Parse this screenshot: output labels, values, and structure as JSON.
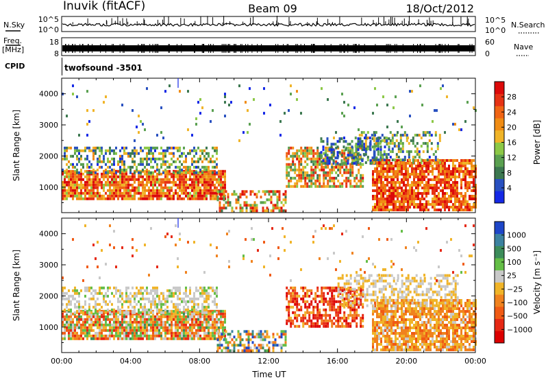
{
  "header": {
    "site": "Inuvik (fitACF)",
    "beam": "Beam 09",
    "date": "18/Oct/2012"
  },
  "noise_panel": {
    "left_label": "N.Sky",
    "right_label": "N.Search",
    "left_ticks": [
      "10^5",
      "10^0"
    ],
    "right_ticks": [
      "10^5",
      "10^0"
    ]
  },
  "freq_panel": {
    "left_label_top": "Freq.",
    "left_label_bottom": "[MHz]",
    "right_label": "Nave",
    "left_ticks": [
      "18",
      "8"
    ],
    "right_ticks": [
      "60",
      "0"
    ]
  },
  "cpid": {
    "label": "CPID",
    "value": "twofsound -3501"
  },
  "chart_data": [
    {
      "type": "heatmap",
      "title": "Power",
      "xlabel": "",
      "ylabel": "Slant Range [km]",
      "x_ticks": [
        "00:00",
        "04:00",
        "08:00",
        "12:00",
        "16:00",
        "20:00",
        "00:00"
      ],
      "xlim_hours": [
        0,
        24
      ],
      "y_ticks": [
        1000,
        2000,
        3000,
        4000
      ],
      "ylim": [
        180,
        4500
      ],
      "colorbar": {
        "label": "Power [dB]",
        "ticks": [
          "4",
          "8",
          "12",
          "16",
          "20",
          "24",
          "28"
        ],
        "colors": [
          "#1428e6",
          "#2850c0",
          "#3c7850",
          "#5aa050",
          "#8cc846",
          "#f0b428",
          "#f08c14",
          "#f06414",
          "#e63214",
          "#dc0a0a"
        ]
      },
      "bands": [
        {
          "t0": 0.0,
          "t1": 9.5,
          "r0": 650,
          "r1": 1550,
          "vmin": 16,
          "vmax": 30,
          "density": 0.85
        },
        {
          "t0": 0.0,
          "t1": 9.0,
          "r0": 1500,
          "r1": 2300,
          "vmin": 6,
          "vmax": 22,
          "density": 0.5
        },
        {
          "t0": 9.0,
          "t1": 13.0,
          "r0": 250,
          "r1": 900,
          "vmin": 10,
          "vmax": 30,
          "density": 0.55
        },
        {
          "t0": 13.0,
          "t1": 17.5,
          "r0": 1000,
          "r1": 2300,
          "vmin": 10,
          "vmax": 28,
          "density": 0.65
        },
        {
          "t0": 15.0,
          "t1": 19.0,
          "r0": 1800,
          "r1": 2600,
          "vmin": 4,
          "vmax": 14,
          "density": 0.45
        },
        {
          "t0": 18.0,
          "t1": 24.0,
          "r0": 300,
          "r1": 1900,
          "vmin": 18,
          "vmax": 30,
          "density": 0.8
        },
        {
          "t0": 17.0,
          "t1": 22.0,
          "r0": 1800,
          "r1": 2800,
          "vmin": 6,
          "vmax": 20,
          "density": 0.4
        },
        {
          "t0": 0.0,
          "t1": 24.0,
          "r0": 2500,
          "r1": 4300,
          "vmin": 4,
          "vmax": 20,
          "density": 0.03
        }
      ]
    },
    {
      "type": "heatmap",
      "title": "Velocity",
      "xlabel": "Time UT",
      "ylabel": "Slant Range [km]",
      "x_ticks": [
        "00:00",
        "04:00",
        "08:00",
        "12:00",
        "16:00",
        "20:00",
        "00:00"
      ],
      "xlim_hours": [
        0,
        24
      ],
      "y_ticks": [
        1000,
        2000,
        3000,
        4000
      ],
      "ylim": [
        180,
        4500
      ],
      "colorbar": {
        "label": "Velocity [m s⁻¹]",
        "ticks": [
          "1000",
          "500",
          "100",
          "25",
          "−25",
          "−100",
          "−500",
          "−1000"
        ],
        "colors": [
          "#1e46c8",
          "#3c82a0",
          "#3c8c5a",
          "#64be46",
          "#c8c8c8",
          "#f0b428",
          "#f0821e",
          "#f05a14",
          "#e62814",
          "#dc0000"
        ]
      },
      "bands": [
        {
          "t0": 0.0,
          "t1": 9.5,
          "r0": 650,
          "r1": 1550,
          "vmin": -300,
          "vmax": 200,
          "density": 0.85
        },
        {
          "t0": 0.0,
          "t1": 9.0,
          "r0": 1500,
          "r1": 2300,
          "vmin": -50,
          "vmax": 100,
          "density": 0.5
        },
        {
          "t0": 9.0,
          "t1": 13.0,
          "r0": 250,
          "r1": 900,
          "vmin": -200,
          "vmax": 400,
          "density": 0.55
        },
        {
          "t0": 13.0,
          "t1": 17.5,
          "r0": 1000,
          "r1": 2300,
          "vmin": -400,
          "vmax": -50,
          "density": 0.65
        },
        {
          "t0": 18.0,
          "t1": 24.0,
          "r0": 300,
          "r1": 1900,
          "vmin": -200,
          "vmax": 20,
          "density": 0.8
        },
        {
          "t0": 16.0,
          "t1": 23.0,
          "r0": 1700,
          "r1": 2700,
          "vmin": -30,
          "vmax": 30,
          "density": 0.45
        },
        {
          "t0": 0.0,
          "t1": 24.0,
          "r0": 2500,
          "r1": 4300,
          "vmin": -300,
          "vmax": 100,
          "density": 0.03
        }
      ]
    }
  ]
}
